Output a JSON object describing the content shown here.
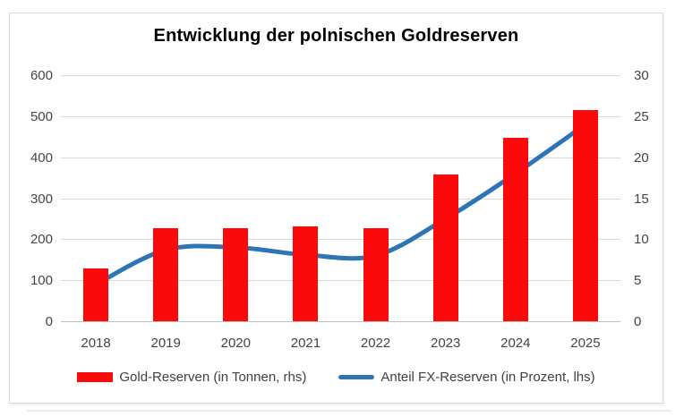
{
  "chart_data": {
    "type": "bar+line combo",
    "title": "Entwicklung der polnischen Goldreserven",
    "categories": [
      "2018",
      "2019",
      "2020",
      "2021",
      "2022",
      "2023",
      "2024",
      "2025"
    ],
    "series": [
      {
        "name": "Gold-Reserven (in Tonnen, rhs)",
        "type": "bar",
        "color": "#fa0a0a",
        "axis": "tonnes_0_600",
        "values": [
          128,
          228,
          228,
          231,
          228,
          358,
          448,
          515
        ]
      },
      {
        "name": "Anteil FX-Reserven (in Prozent, lhs)",
        "type": "line",
        "color": "#2e75b6",
        "axis": "percent_0_30",
        "values": [
          4.5,
          8.7,
          9.0,
          8.1,
          8.0,
          12.5,
          18.0,
          24.0
        ]
      }
    ],
    "left_axis": {
      "ticks": [
        600,
        500,
        400,
        300,
        200,
        100,
        0
      ],
      "min": 0,
      "max": 600
    },
    "right_axis": {
      "ticks": [
        30,
        25,
        20,
        15,
        10,
        5,
        0
      ],
      "min": 0,
      "max": 30
    },
    "grid": true,
    "legend_position": "bottom",
    "colors": {
      "bar": "#fa0a0a",
      "line": "#2e75b6",
      "gridline": "#d9d9d9",
      "axis_zero_line": "#bfbfbf",
      "tick_text": "#444444",
      "frame_border": "#d9d9d9"
    }
  }
}
